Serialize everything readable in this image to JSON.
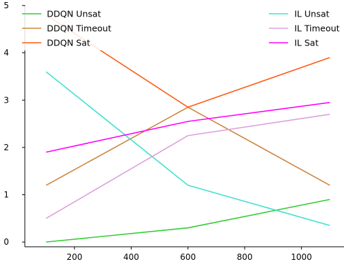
{
  "chart_data": {
    "type": "line",
    "title": "",
    "xlabel": "",
    "ylabel": "",
    "x": [
      100,
      600,
      1100
    ],
    "xlim": [
      25,
      1150
    ],
    "ylim": [
      -0.1,
      5.0
    ],
    "xticks": [
      200,
      400,
      600,
      800,
      1000
    ],
    "yticks": [
      0,
      1,
      2,
      3,
      4,
      5
    ],
    "grid": false,
    "legend_placement": "top, two columns",
    "series": [
      {
        "name": "DDQN Unsat",
        "color": "#33cc33",
        "values": [
          0.0,
          0.3,
          0.9
        ]
      },
      {
        "name": "DDQN Timeout",
        "color": "#cd853f",
        "values": [
          1.2,
          2.85,
          1.2
        ]
      },
      {
        "name": "DDQN Sat",
        "color": "#ff5a14",
        "values": [
          4.8,
          2.85,
          3.9
        ]
      },
      {
        "name": "IL Unsat",
        "color": "#40e0d0",
        "values": [
          3.6,
          1.2,
          0.35
        ]
      },
      {
        "name": "IL Timeout",
        "color": "#dda0dd",
        "values": [
          0.5,
          2.25,
          2.7
        ]
      },
      {
        "name": "IL Sat",
        "color": "#ff00ff",
        "values": [
          1.9,
          2.55,
          2.95
        ]
      }
    ]
  }
}
